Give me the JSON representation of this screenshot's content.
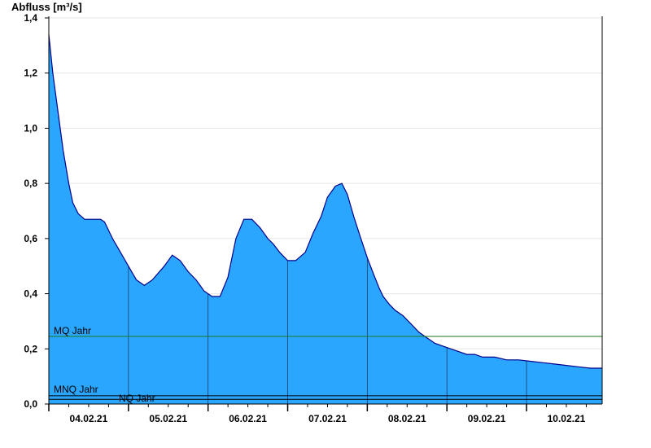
{
  "chart_data": {
    "type": "area",
    "ylabel": "Abfluss [m³/s]",
    "ylim": [
      0,
      1.4
    ],
    "yticks": [
      "0,0",
      "0,2",
      "0,4",
      "0,6",
      "0,8",
      "1,0",
      "1,2",
      "1,4"
    ],
    "yticks_values": [
      0,
      0.2,
      0.4,
      0.6,
      0.8,
      1.0,
      1.2,
      1.4
    ],
    "xlim": [
      3.5,
      10.45
    ],
    "x_unit": "day of February 2021",
    "xtick_labels": [
      "04.02.21",
      "05.02.21",
      "06.02.21",
      "07.02.21",
      "08.02.21",
      "09.02.21",
      "10.02.21"
    ],
    "xtick_positions": [
      4,
      5,
      6,
      7,
      8,
      9,
      10
    ],
    "grid": "horizontal",
    "series": [
      {
        "x": [
          3.5,
          3.55,
          3.62,
          3.68,
          3.75,
          3.8,
          3.87,
          3.95,
          4.0,
          4.08,
          4.15,
          4.2,
          4.3,
          4.4,
          4.5,
          4.6,
          4.7,
          4.8,
          4.95,
          5.05,
          5.15,
          5.25,
          5.35,
          5.45,
          5.55,
          5.65,
          5.75,
          5.85,
          5.95,
          6.05,
          6.15,
          6.25,
          6.32,
          6.4,
          6.5,
          6.6,
          6.72,
          6.82,
          6.92,
          7.0,
          7.1,
          7.18,
          7.25,
          7.33,
          7.42,
          7.5,
          7.58,
          7.65,
          7.7,
          7.78,
          7.85,
          7.95,
          8.05,
          8.15,
          8.25,
          8.35,
          8.45,
          8.55,
          8.65,
          8.75,
          8.85,
          8.95,
          9.1,
          9.25,
          9.4,
          9.55,
          9.7,
          9.85,
          10.0,
          10.15,
          10.3,
          10.45
        ],
        "values": [
          1.34,
          1.2,
          1.05,
          0.92,
          0.8,
          0.73,
          0.69,
          0.67,
          0.67,
          0.67,
          0.67,
          0.66,
          0.6,
          0.55,
          0.5,
          0.45,
          0.43,
          0.45,
          0.5,
          0.54,
          0.52,
          0.48,
          0.45,
          0.41,
          0.39,
          0.39,
          0.46,
          0.6,
          0.67,
          0.67,
          0.64,
          0.6,
          0.58,
          0.55,
          0.52,
          0.52,
          0.55,
          0.62,
          0.68,
          0.75,
          0.79,
          0.8,
          0.76,
          0.68,
          0.6,
          0.53,
          0.47,
          0.42,
          0.39,
          0.36,
          0.34,
          0.32,
          0.29,
          0.26,
          0.24,
          0.22,
          0.21,
          0.2,
          0.19,
          0.18,
          0.18,
          0.17,
          0.17,
          0.16,
          0.16,
          0.155,
          0.15,
          0.145,
          0.14,
          0.135,
          0.13,
          0.13
        ]
      }
    ],
    "reference_lines": [
      {
        "label": "MQ Jahr",
        "value": 0.245,
        "color": "#1a7a1a"
      },
      {
        "label": "MNQ Jahr",
        "value": 0.03,
        "color": "#000000"
      },
      {
        "label": "NQ Jahr",
        "value": 0.017,
        "color": "#000000"
      }
    ],
    "colors": {
      "fill": "#2aa6ff",
      "line": "#00008b",
      "grid": "#e6e6e6",
      "axis": "#000000",
      "vline": "#1a3a6e"
    }
  }
}
